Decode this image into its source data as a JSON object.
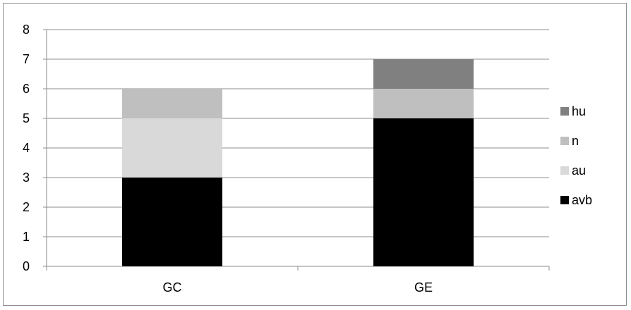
{
  "chart_data": {
    "type": "bar",
    "stacked": true,
    "categories": [
      "GC",
      "GE"
    ],
    "series": [
      {
        "name": "avb",
        "values": [
          3,
          5
        ],
        "color": "#000000"
      },
      {
        "name": "au",
        "values": [
          2,
          0
        ],
        "color": "#d9d9d9"
      },
      {
        "name": "n",
        "values": [
          1,
          1
        ],
        "color": "#bfbfbf"
      },
      {
        "name": "hu",
        "values": [
          0,
          1
        ],
        "color": "#808080"
      }
    ],
    "ylim": [
      0,
      8
    ],
    "yticks": [
      "0",
      "1",
      "2",
      "3",
      "4",
      "5",
      "6",
      "7",
      "8"
    ],
    "grid": true,
    "legend_position": "right",
    "legend_order": [
      "hu",
      "n",
      "au",
      "avb"
    ],
    "gridline_color": "#8c8c8c"
  }
}
